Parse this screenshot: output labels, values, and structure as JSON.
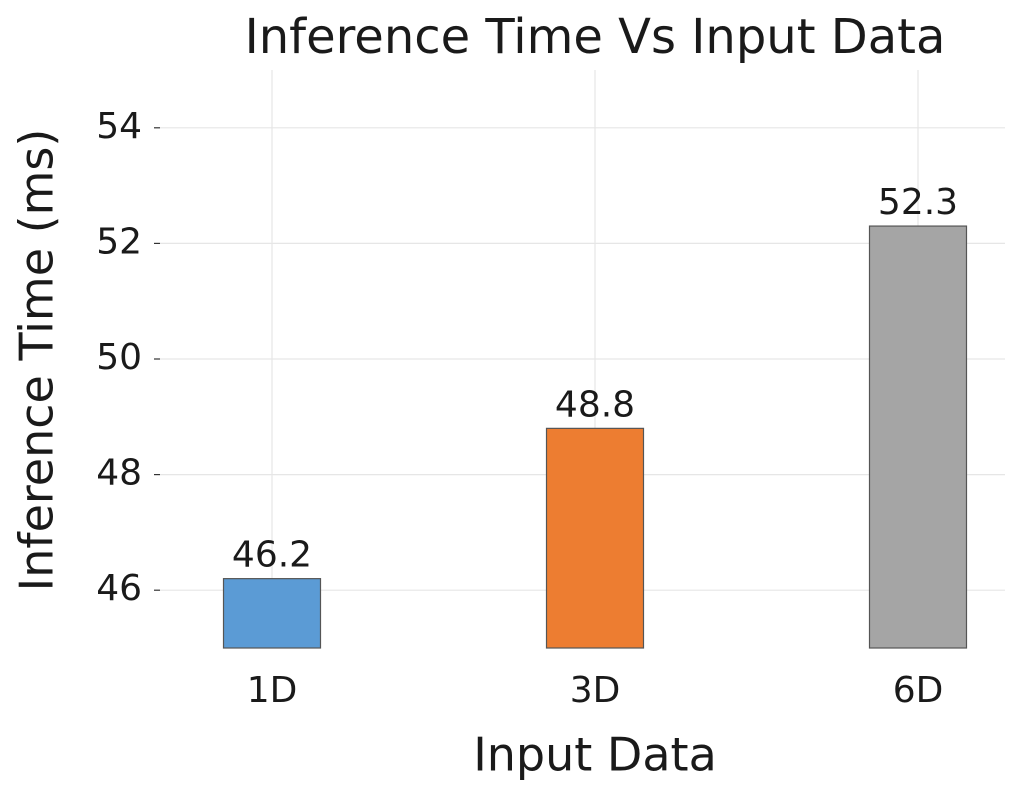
{
  "chart_data": {
    "type": "bar",
    "title": "Inference Time Vs Input Data",
    "x_label": "Input Data",
    "y_label": "Inference Time (ms)",
    "categories": [
      "1D",
      "3D",
      "6D"
    ],
    "values": [
      46.2,
      48.8,
      52.3
    ],
    "colors": [
      "#5b9bd5",
      "#ed7d31",
      "#a5a5a5"
    ],
    "ylim": [
      45,
      55
    ],
    "yticks": [
      46,
      48,
      50,
      52,
      54
    ],
    "grid": true
  }
}
